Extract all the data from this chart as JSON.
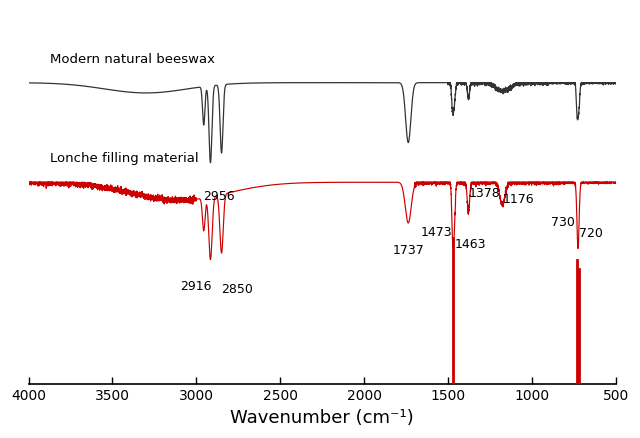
{
  "title": "",
  "xlabel": "Wavenumber (cm⁻¹)",
  "ylabel": "",
  "xlim": [
    4000,
    500
  ],
  "label_beeswax": "Modern natural beeswax",
  "label_lonche": "Lonche filling material",
  "color_beeswax": "#333333",
  "color_lonche": "#cc0000",
  "color_red_bars": "#cc0000",
  "xticks": [
    4000,
    3500,
    3000,
    2500,
    2000,
    1500,
    1000,
    500
  ],
  "xlabel_fontsize": 13,
  "annotation_fontsize": 9,
  "beeswax_baseline": 0.82,
  "lonche_baseline": 0.5,
  "beeswax_scale": 0.55,
  "lonche_scale": 0.55
}
